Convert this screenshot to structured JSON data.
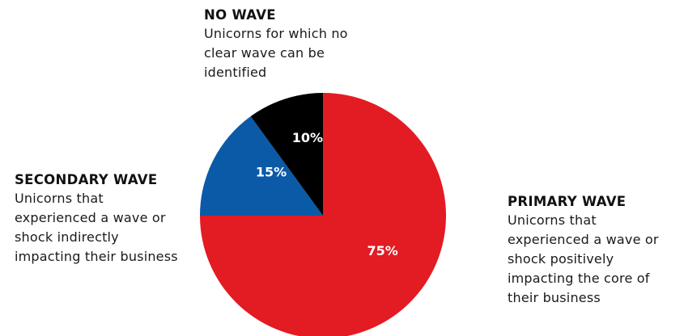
{
  "chart_data": {
    "type": "pie",
    "title": "",
    "slices": [
      {
        "label": "PRIMARY WAVE",
        "value": 75,
        "value_label": "75%",
        "color": "#e31b23",
        "description": [
          "Unicorns that",
          "experienced a wave or",
          "shock positively",
          "impacting the core of",
          "their business"
        ]
      },
      {
        "label": "SECONDARY WAVE",
        "value": 15,
        "value_label": "15%",
        "color": "#0a5aa8",
        "description": [
          "Unicorns that",
          "experienced a wave or",
          "shock indirectly",
          "impacting their business"
        ]
      },
      {
        "label": "NO WAVE",
        "value": 10,
        "value_label": "10%",
        "color": "#000000",
        "description": [
          "Unicorns for which no",
          "clear wave can be",
          "identified"
        ]
      }
    ]
  }
}
